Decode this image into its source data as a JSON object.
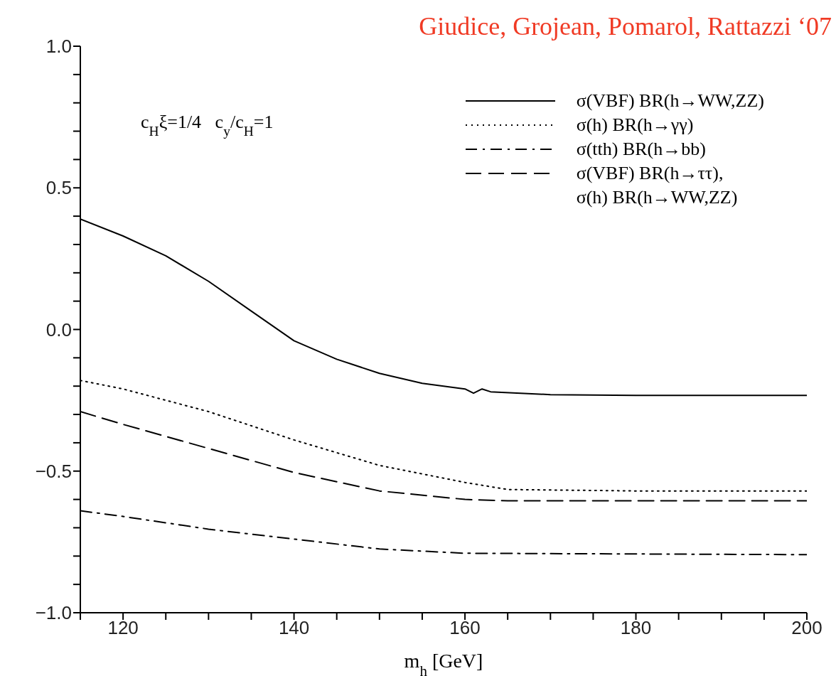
{
  "chart_data": {
    "type": "line",
    "annotations": [
      "c$_{H}$ξ=1/4   c$_{y}$/c$_{H}$=1",
      "Giudice, Grojean, Pomarol, Rattazzi ‘07"
    ],
    "xlabel": "m$_{h}$ [GeV]",
    "xlim": [
      115,
      200
    ],
    "xticks": [
      {
        "value": 115,
        "label": null
      },
      120,
      {
        "value": 125,
        "label": null
      },
      {
        "value": 130,
        "label": null
      },
      {
        "value": 135,
        "label": null
      },
      140,
      {
        "value": 145,
        "label": null
      },
      {
        "value": 150,
        "label": null
      },
      {
        "value": 155,
        "label": null
      },
      160,
      {
        "value": 165,
        "label": null
      },
      {
        "value": 170,
        "label": null
      },
      {
        "value": 175,
        "label": null
      },
      180,
      {
        "value": 185,
        "label": null
      },
      {
        "value": 190,
        "label": null
      },
      {
        "value": 195,
        "label": null
      },
      200
    ],
    "ylim": [
      -1,
      1
    ],
    "yticks": [
      {
        "value": -1,
        "label": "−1.0"
      },
      {
        "value": -0.9,
        "label": null
      },
      {
        "value": -0.8,
        "label": null
      },
      {
        "value": -0.7,
        "label": null
      },
      {
        "value": -0.6,
        "label": null
      },
      {
        "value": -0.5,
        "label": "−0.5"
      },
      {
        "value": -0.4,
        "label": null
      },
      {
        "value": -0.3,
        "label": null
      },
      {
        "value": -0.2,
        "label": null
      },
      {
        "value": -0.1,
        "label": null
      },
      {
        "value": 0,
        "label": "0.0"
      },
      {
        "value": 0.1,
        "label": null
      },
      {
        "value": 0.2,
        "label": null
      },
      {
        "value": 0.3,
        "label": null
      },
      {
        "value": 0.4,
        "label": null
      },
      {
        "value": 0.5,
        "label": "0.5"
      },
      {
        "value": 0.6,
        "label": null
      },
      {
        "value": 0.7,
        "label": null
      },
      {
        "value": 0.8,
        "label": null
      },
      {
        "value": 0.9,
        "label": null
      },
      {
        "value": 1,
        "label": "1.0"
      }
    ],
    "legend": "top right",
    "series": [
      {
        "name": "σ(VBF) BR(h→WW,ZZ)",
        "color": "#000000",
        "line_style": "solid",
        "x": [
          115,
          120,
          125,
          130,
          135,
          140,
          145,
          150,
          155,
          160,
          161,
          162,
          163,
          170,
          180,
          200
        ],
        "values": [
          0.39,
          0.33,
          0.26,
          0.17,
          0.065,
          -0.04,
          -0.105,
          -0.155,
          -0.19,
          -0.21,
          -0.225,
          -0.21,
          -0.22,
          -0.23,
          -0.233,
          -0.233
        ]
      },
      {
        "name": "σ(h) BR(h→γγ)",
        "color": "#000000",
        "line_style": "dotted",
        "x": [
          115,
          120,
          130,
          140,
          150,
          160,
          165,
          180,
          200
        ],
        "values": [
          -0.18,
          -0.21,
          -0.29,
          -0.39,
          -0.48,
          -0.54,
          -0.565,
          -0.57,
          -0.57
        ]
      },
      {
        "name": "σ(tth) BR(h→bb)",
        "color": "#000000",
        "line_style": "dashdot",
        "x": [
          115,
          120,
          130,
          140,
          150,
          160,
          200
        ],
        "values": [
          -0.64,
          -0.66,
          -0.705,
          -0.74,
          -0.775,
          -0.79,
          -0.795
        ]
      },
      {
        "name": "σ(VBF) BR(h→ττ),\nσ(h) BR(h→WW,ZZ)",
        "color": "#000000",
        "line_style": "dashed",
        "x": [
          115,
          120,
          130,
          140,
          150,
          160,
          165,
          200
        ],
        "values": [
          -0.29,
          -0.335,
          -0.42,
          -0.505,
          -0.57,
          -0.6,
          -0.605,
          -0.605
        ]
      }
    ]
  }
}
